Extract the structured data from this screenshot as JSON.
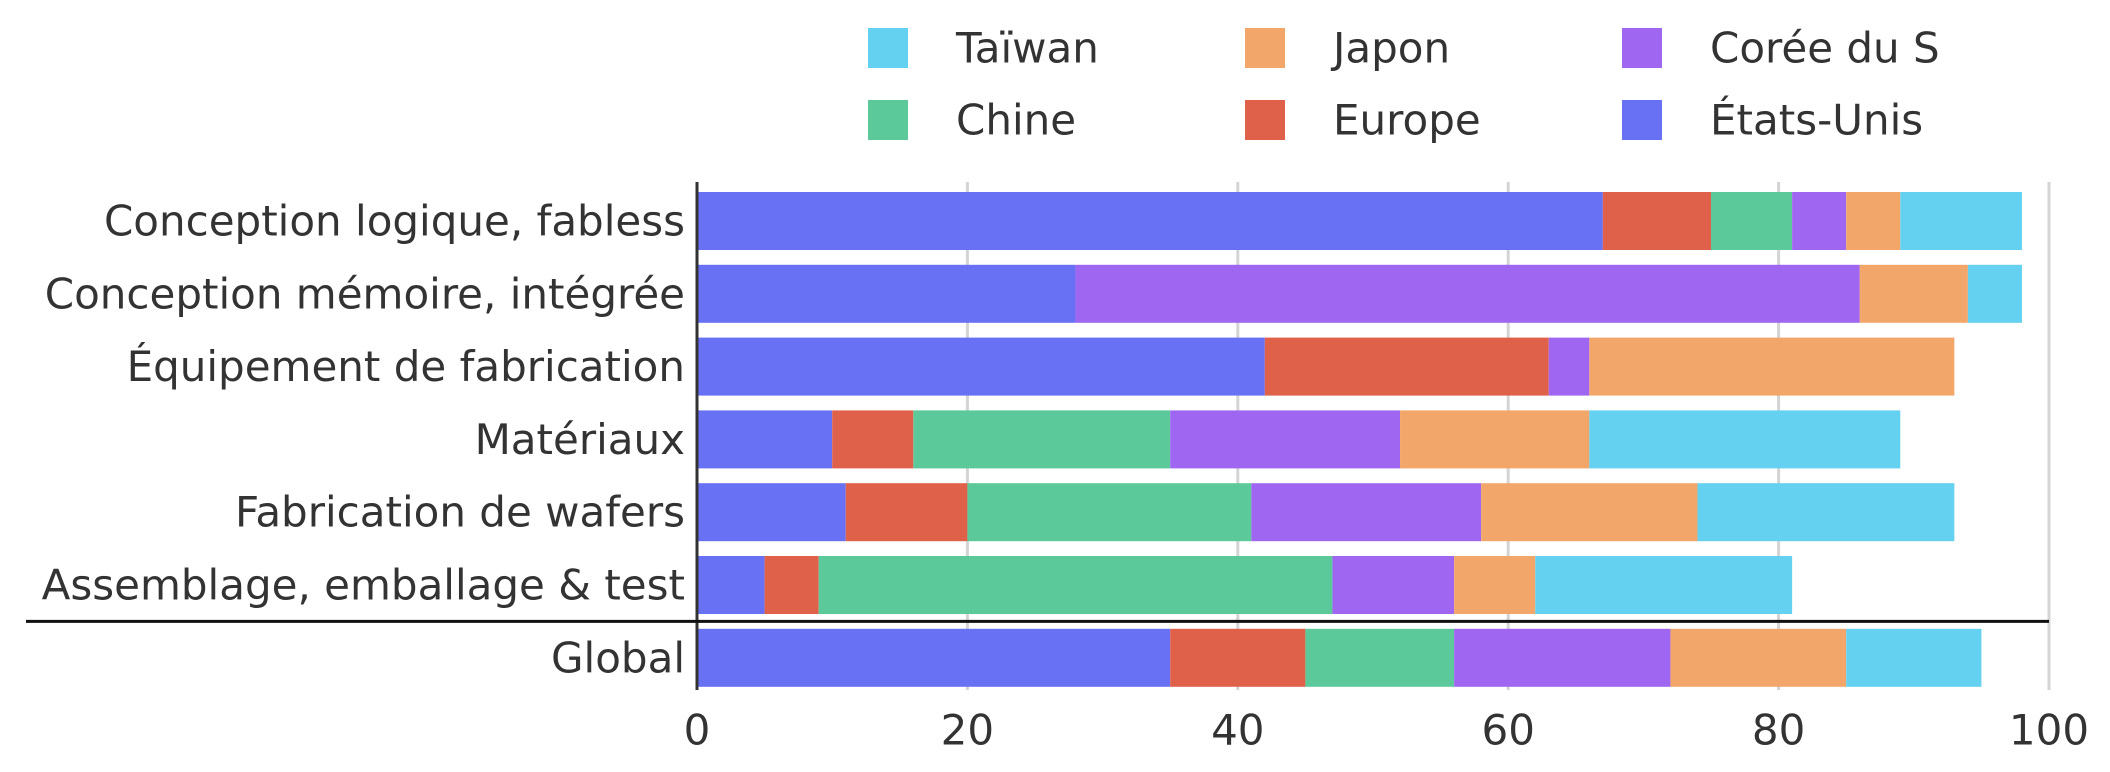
{
  "chart_data": {
    "type": "bar",
    "orientation": "horizontal",
    "stacked": true,
    "categories": [
      "Conception logique, fabless",
      "Conception mémoire, intégrée",
      "Équipement de fabrication",
      "Matériaux",
      "Fabrication de wafers",
      "Assemblage, emballage & test",
      "Global"
    ],
    "series": [
      {
        "name": "États-Unis",
        "color": "#6870f4",
        "values": [
          67,
          28,
          42,
          10,
          11,
          5,
          35
        ]
      },
      {
        "name": "Europe",
        "color": "#df6149",
        "values": [
          8,
          0,
          21,
          6,
          9,
          4,
          10
        ]
      },
      {
        "name": "Chine",
        "color": "#5bc99a",
        "values": [
          6,
          0,
          0,
          19,
          21,
          38,
          11
        ]
      },
      {
        "name": "Corée du S",
        "color": "#9f66f2",
        "values": [
          4,
          58,
          3,
          17,
          17,
          9,
          16
        ]
      },
      {
        "name": "Japon",
        "color": "#f3a66a",
        "values": [
          4,
          8,
          27,
          14,
          16,
          6,
          13
        ]
      },
      {
        "name": "Taïwan",
        "color": "#63d1ef",
        "values": [
          9,
          4,
          0,
          23,
          19,
          19,
          10
        ]
      }
    ],
    "legend_order": [
      [
        "Taïwan",
        "Japon",
        "Corée du S"
      ],
      [
        "Chine",
        "Europe",
        "États-Unis"
      ]
    ],
    "x_ticks": [
      "0",
      "20",
      "40",
      "60",
      "80",
      "100"
    ],
    "xlim": [
      0,
      100
    ],
    "grid": true,
    "legend_position": "top-right",
    "separator_before": "Global"
  }
}
